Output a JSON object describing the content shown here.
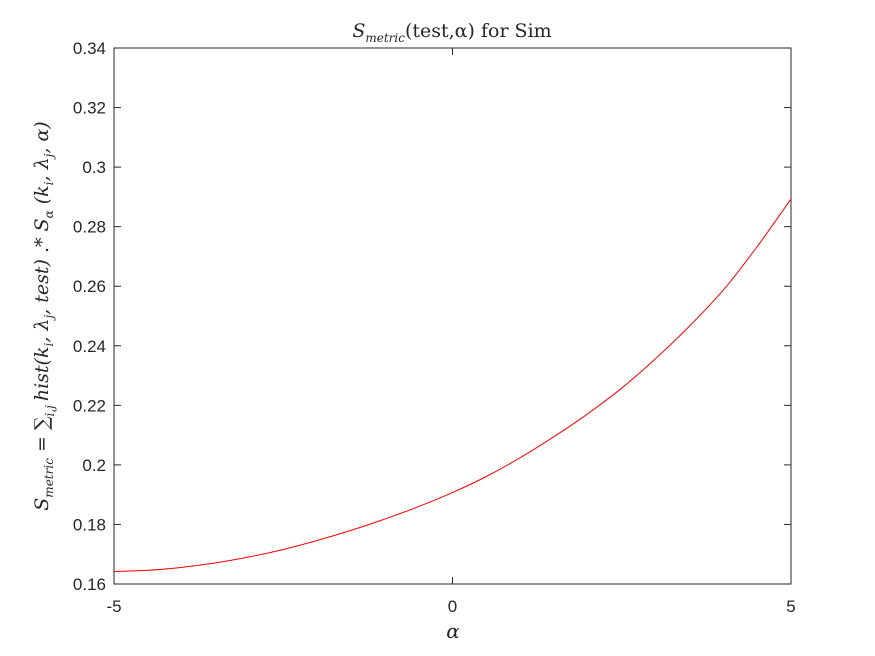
{
  "chart_data": {
    "type": "line",
    "title": {
      "s": "S",
      "sub": "metric",
      "rest": "(test,α) for Sim"
    },
    "xlabel": "α",
    "ylabel": {
      "lhs_s": "S",
      "lhs_sub": "metric",
      "eq": " = ∑",
      "sum_sub": "i,j",
      "hist": "hist",
      "hat": "^",
      "hist_args": "(k",
      "i": "i",
      "lambda": ", λ",
      "j": "j",
      "test": ", test)",
      "op": "  .*  ",
      "s_hat": "S",
      "alpha_sub": "α",
      "s_args": " (k",
      "s_args2": ", λ",
      "s_args3": ", α)"
    },
    "xlim": [
      -5,
      5
    ],
    "ylim": [
      0.16,
      0.34
    ],
    "xticks": [
      -5,
      0,
      5
    ],
    "xtick_labels": [
      "-5",
      "0",
      "5"
    ],
    "yticks": [
      0.16,
      0.18,
      0.2,
      0.22,
      0.24,
      0.26,
      0.28,
      0.3,
      0.32,
      0.34
    ],
    "ytick_labels": [
      "0.16",
      "0.18",
      "0.2",
      "0.22",
      "0.24",
      "0.26",
      "0.28",
      "0.3",
      "0.32",
      "0.34"
    ],
    "grid": false,
    "series": [
      {
        "color": "#ff0000",
        "x": [
          -5,
          -4.5,
          -4,
          -3.5,
          -3,
          -2.5,
          -2,
          -1.5,
          -1,
          -0.5,
          0,
          0.5,
          1,
          1.5,
          2,
          2.5,
          3,
          3.5,
          4,
          4.5,
          5
        ],
        "y": [
          0.1642,
          0.1646,
          0.1656,
          0.1671,
          0.1691,
          0.1716,
          0.1746,
          0.178,
          0.1818,
          0.186,
          0.1907,
          0.1961,
          0.2024,
          0.2095,
          0.2172,
          0.2258,
          0.2357,
          0.2466,
          0.2587,
          0.2733,
          0.2893
        ]
      }
    ]
  }
}
